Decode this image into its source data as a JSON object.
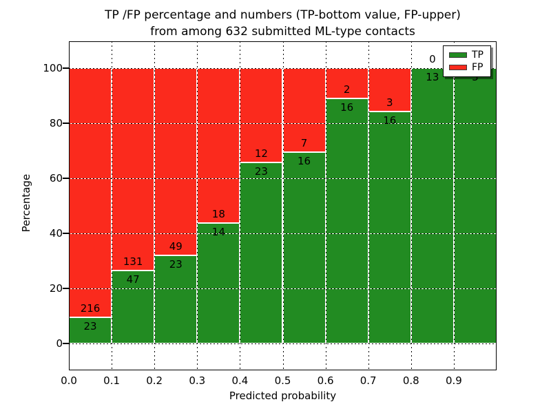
{
  "figure": {
    "title_line1": "TP /FP percentage and numbers (TP-bottom value, FP-upper)",
    "title_line2": "from among 632 submitted ML-type contacts"
  },
  "chart_data": {
    "type": "bar",
    "stacked": true,
    "normalized_to": 100,
    "title": "TP /FP percentage and numbers (TP-bottom value, FP-upper) from among 632 submitted ML-type contacts",
    "xlabel": "Predicted probability",
    "ylabel": "Percentage",
    "total_contacts": 632,
    "categories": [
      "0.0-0.1",
      "0.1-0.2",
      "0.2-0.3",
      "0.3-0.4",
      "0.4-0.5",
      "0.5-0.6",
      "0.6-0.7",
      "0.7-0.8",
      "0.8-0.9",
      "0.9-1.0"
    ],
    "x_tick_labels": [
      "0.0",
      "0.1",
      "0.2",
      "0.3",
      "0.4",
      "0.5",
      "0.6",
      "0.7",
      "0.8",
      "0.9"
    ],
    "y_ticks": [
      0,
      20,
      40,
      60,
      80,
      100
    ],
    "y_tick_labels": [
      "0",
      "20",
      "40",
      "60",
      "80",
      "100"
    ],
    "xlim": [
      0.0,
      1.0
    ],
    "ylim": [
      -10,
      110
    ],
    "grid": "dotted",
    "series": [
      {
        "name": "TP",
        "color": "#228B22",
        "counts": [
          23,
          47,
          23,
          14,
          23,
          16,
          16,
          16,
          13,
          3
        ],
        "percentages": [
          9.6,
          26.4,
          31.9,
          43.8,
          65.7,
          69.6,
          88.9,
          84.2,
          100.0,
          100.0
        ]
      },
      {
        "name": "FP",
        "color": "#FB2A1D",
        "counts": [
          216,
          131,
          49,
          18,
          12,
          7,
          2,
          3,
          0,
          0
        ],
        "percentages": [
          90.4,
          73.6,
          68.1,
          56.2,
          34.3,
          30.4,
          11.1,
          15.8,
          0.0,
          0.0
        ]
      }
    ],
    "legend": {
      "position": "upper right",
      "entries": [
        "TP",
        "FP"
      ]
    }
  }
}
